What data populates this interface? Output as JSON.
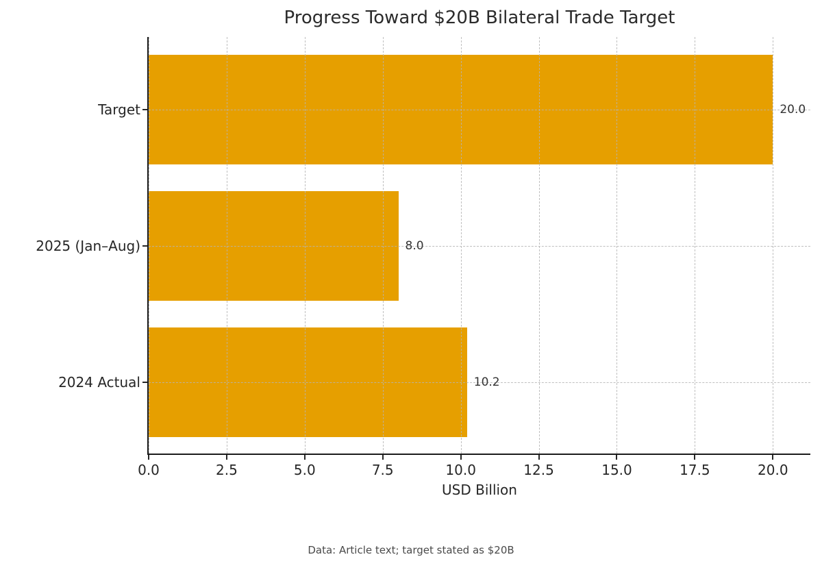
{
  "chart_data": {
    "type": "bar",
    "orientation": "horizontal",
    "title": "Progress Toward $20B Bilateral Trade Target",
    "categories": [
      "Target",
      "2025 (Jan–Aug)",
      "2024 Actual"
    ],
    "values": [
      20.0,
      8.0,
      10.2
    ],
    "value_labels": [
      "20.0",
      "8.0",
      "10.2"
    ],
    "xlabel": "USD Billion",
    "ylabel": "",
    "xlim": [
      0,
      21.2
    ],
    "xticks": [
      0.0,
      2.5,
      5.0,
      7.5,
      10.0,
      12.5,
      15.0,
      17.5,
      20.0
    ],
    "xtick_labels": [
      "0.0",
      "2.5",
      "5.0",
      "7.5",
      "10.0",
      "12.5",
      "15.0",
      "17.5",
      "20.0"
    ],
    "grid": true,
    "grid_style": "dashed",
    "grid_on_top_of_bars": true,
    "legend": "none",
    "bar_color": "#E69F00",
    "spine_color": "#1a1a1a",
    "text_color": "#262626",
    "footnote": "Data: Article text; target stated as $20B"
  }
}
